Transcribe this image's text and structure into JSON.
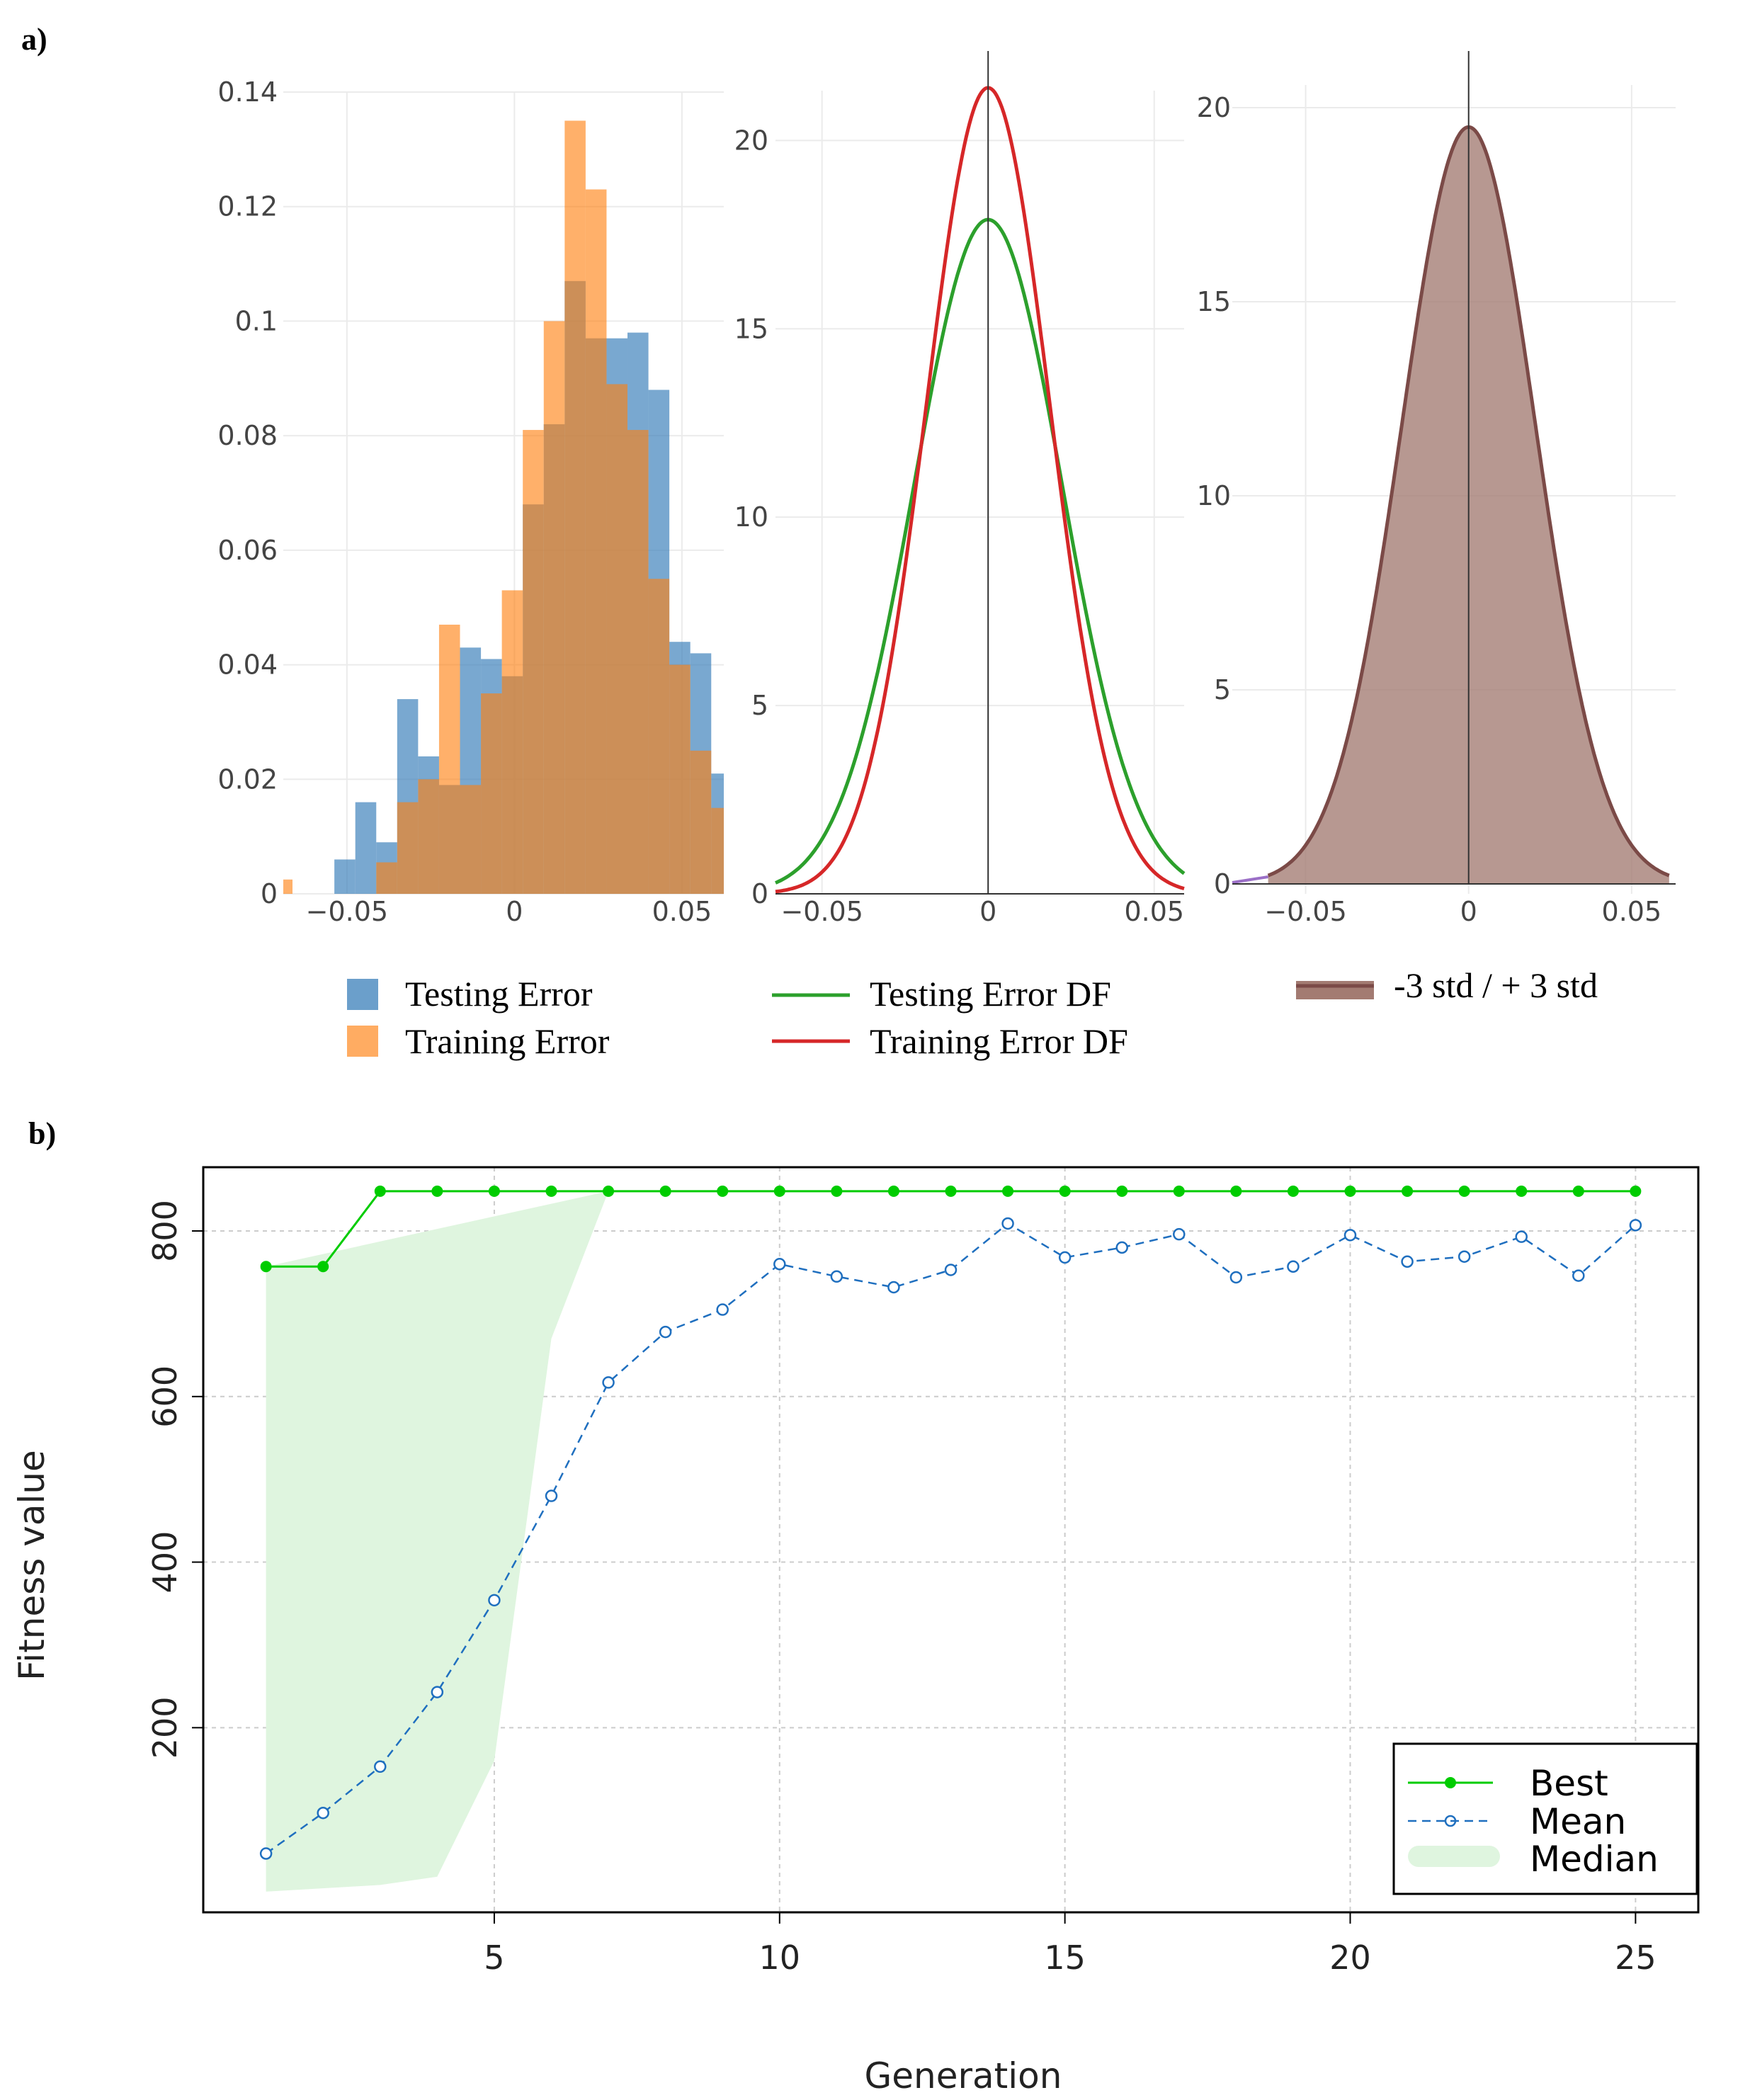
{
  "colors": {
    "testing_error": "#3a7fba",
    "training_error": "#ff7f0e",
    "testing_df": "#2ca02c",
    "training_df": "#d62728",
    "std_fill": "#a37b72",
    "std_line": "#7b4a47",
    "best": "#00cc00",
    "mean": "#1f6fbf",
    "median_fill": "#dff5df"
  },
  "chart_data": [
    {
      "panel": "a)",
      "type": "bar",
      "subtype": "overlaid-histogram",
      "xlim": [
        -0.069,
        0.0625
      ],
      "ylim": [
        0,
        0.14
      ],
      "xticks": [
        -0.05,
        0,
        0.05
      ],
      "xtick_labels": [
        "−0.05",
        "0",
        "0.05"
      ],
      "yticks": [
        0,
        0.02,
        0.04,
        0.06,
        0.08,
        0.1,
        0.12,
        0.14
      ],
      "ytick_labels": [
        "0",
        "0.02",
        "0.04",
        "0.06",
        "0.08",
        "0.1",
        "0.12",
        "0.14"
      ],
      "bin_start": -0.0725,
      "bin_width": 0.00625,
      "series": [
        {
          "name": "Testing Error",
          "values": [
            0,
            0,
            0,
            0.006,
            0.016,
            0.009,
            0.034,
            0.024,
            0.019,
            0.043,
            0.041,
            0.038,
            0.068,
            0.082,
            0.107,
            0.097,
            0.097,
            0.098,
            0.088,
            0.044,
            0.042,
            0.021,
            0.027,
            0.011,
            0.002,
            0.007
          ]
        },
        {
          "name": "Training Error",
          "values": [
            0.0025,
            0,
            0,
            0,
            0,
            0.0055,
            0.016,
            0.02,
            0.047,
            0.019,
            0.035,
            0.053,
            0.081,
            0.1,
            0.135,
            0.123,
            0.089,
            0.081,
            0.055,
            0.04,
            0.025,
            0.015,
            0.009,
            0,
            0,
            0
          ]
        }
      ],
      "legend": [
        "Testing Error",
        "Training Error"
      ]
    },
    {
      "type": "line",
      "subtype": "density",
      "xlim": [
        -0.064,
        0.059
      ],
      "ylim": [
        0,
        22
      ],
      "xticks": [
        -0.05,
        0,
        0.05
      ],
      "xtick_labels": [
        "−0.05",
        "0",
        "0.05"
      ],
      "yticks": [
        0,
        5,
        10,
        15,
        20
      ],
      "ytick_labels": [
        "0",
        "5",
        "10",
        "15",
        "20"
      ],
      "series": [
        {
          "name": "Testing Error DF",
          "mean": 0,
          "peak": 17.9,
          "std": 0.0223
        },
        {
          "name": "Training Error DF",
          "mean": 0,
          "peak": 21.4,
          "std": 0.0186
        }
      ],
      "legend": [
        "Testing Error DF",
        "Training Error DF"
      ]
    },
    {
      "type": "area",
      "subtype": "density",
      "xlim": [
        -0.0725,
        0.0635
      ],
      "ylim": [
        0,
        20
      ],
      "xticks": [
        -0.05,
        0,
        0.05
      ],
      "xtick_labels": [
        "−0.05",
        "0",
        "0.05"
      ],
      "yticks": [
        0,
        5,
        10,
        15,
        20
      ],
      "ytick_labels": [
        "0",
        "5",
        "10",
        "15",
        "20"
      ],
      "series": [
        {
          "name": "-3 std / + 3 std",
          "mean": 0,
          "peak": 19.5,
          "std": 0.0205,
          "range": [
            -0.0615,
            0.0615
          ]
        }
      ],
      "legend": [
        "-3 std / + 3 std"
      ]
    },
    {
      "panel": "b)",
      "type": "line",
      "xlabel": "Generation",
      "ylabel": "Fitness value",
      "xlim": [
        -0.1,
        26.1
      ],
      "ylim": [
        -23,
        877
      ],
      "xticks": [
        5,
        10,
        15,
        20,
        25
      ],
      "xtick_labels": [
        "5",
        "10",
        "15",
        "20",
        "25"
      ],
      "yticks": [
        200,
        400,
        600,
        800
      ],
      "ytick_labels": [
        "200",
        "400",
        "600",
        "800"
      ],
      "x": [
        1,
        2,
        3,
        4,
        5,
        6,
        7,
        8,
        9,
        10,
        11,
        12,
        13,
        14,
        15,
        16,
        17,
        18,
        19,
        20,
        21,
        22,
        23,
        24,
        25
      ],
      "series": [
        {
          "name": "Best",
          "values": [
            757,
            757,
            848,
            848,
            848,
            848,
            848,
            848,
            848,
            848,
            848,
            848,
            848,
            848,
            848,
            848,
            848,
            848,
            848,
            848,
            848,
            848,
            848,
            848,
            848
          ]
        },
        {
          "name": "Mean",
          "values": [
            48,
            97,
            153,
            243,
            354,
            480,
            617,
            678,
            705,
            760,
            745,
            732,
            753,
            809,
            768,
            780,
            796,
            744,
            757,
            795,
            763,
            769,
            793,
            746,
            807
          ]
        },
        {
          "name": "Median",
          "band_low": [
            2,
            2,
            10,
            20,
            200,
            320,
            420,
            848,
            848,
            848,
            848,
            848,
            848,
            848,
            848,
            848,
            848,
            848,
            848,
            848,
            848,
            848,
            848,
            848,
            848
          ],
          "band_points_x": [
            1,
            1,
            3,
            4,
            5,
            6,
            7,
            7
          ],
          "band_points_y": [
            757,
            2,
            10,
            20,
            160,
            670,
            848,
            848
          ]
        }
      ],
      "legend": [
        "Best",
        "Mean",
        "Median"
      ],
      "legend_position": "bottom-right"
    }
  ]
}
